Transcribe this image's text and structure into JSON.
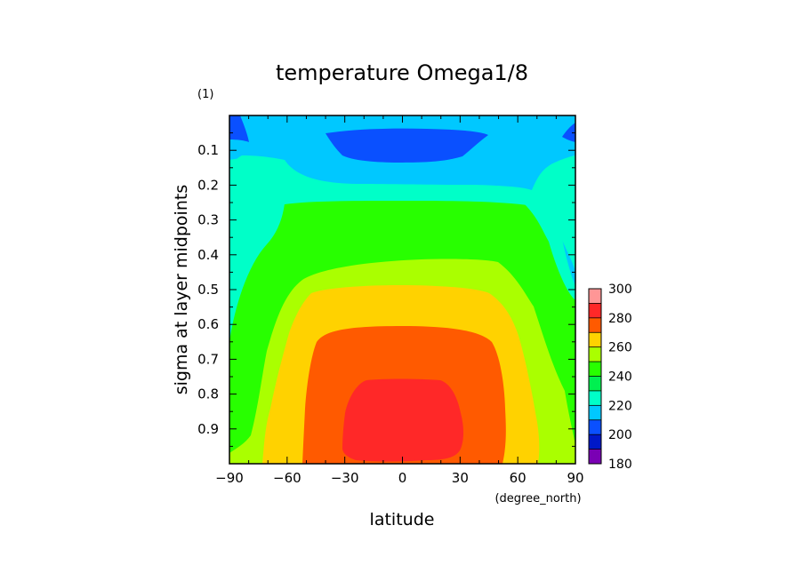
{
  "chart_data": {
    "type": "heatmap",
    "title": "temperature Omega1/8",
    "subtitle": "(1)",
    "xlabel": "latitude",
    "xunit": "(degree_north)",
    "ylabel": "sigma at layer midpoints",
    "xlim": [
      -90,
      90
    ],
    "ylim": [
      0.0,
      1.0
    ],
    "y_inverted": true,
    "x_ticks": [
      "-90",
      "-60",
      "-30",
      "0",
      "30",
      "60",
      "90"
    ],
    "y_ticks": [
      "0.1",
      "0.2",
      "0.3",
      "0.4",
      "0.5",
      "0.6",
      "0.7",
      "0.8",
      "0.9"
    ],
    "colorbar": {
      "levels": [
        180,
        190,
        200,
        210,
        220,
        230,
        240,
        250,
        260,
        270,
        280,
        290,
        300
      ],
      "labels": [
        "180",
        "200",
        "220",
        "240",
        "260",
        "280",
        "300"
      ],
      "colors": [
        "#7a00b4",
        "#0018c8",
        "#0a50ff",
        "#00c8ff",
        "#00ffc8",
        "#00f050",
        "#28ff00",
        "#aaff00",
        "#ffd200",
        "#ff5a00",
        "#ff2828",
        "#ff9696"
      ]
    },
    "contour_regions": [
      {
        "range": [
          200,
          210
        ],
        "where": "0.05-0.13 sigma, 30S-40N; upper corners at 90S/90N"
      },
      {
        "range": [
          210,
          220
        ],
        "where": "top layer 0.02-0.25 sigma, bulging to 0.45 sigma at 90S/90N"
      },
      {
        "range": [
          220,
          230
        ],
        "where": "0.15-0.3 sigma, to 0.65 sigma near the poles"
      },
      {
        "range": [
          230,
          240
        ],
        "where": "0.25-0.4 sigma"
      },
      {
        "range": [
          240,
          250
        ],
        "where": "0.38-0.5 sigma; 0.75-1.0 sigma near the poles"
      },
      {
        "range": [
          250,
          260
        ],
        "where": "0.5-0.6 sigma"
      },
      {
        "range": [
          260,
          270
        ],
        "where": "0.58-0.7 sigma; 0.6-1.0 sigma 75S-60N"
      },
      {
        "range": [
          270,
          280
        ],
        "where": "0.68-1.0 sigma, 50S-55N"
      },
      {
        "range": [
          280,
          290
        ],
        "where": "0.77-1.0 sigma, 30S-33N"
      }
    ]
  }
}
